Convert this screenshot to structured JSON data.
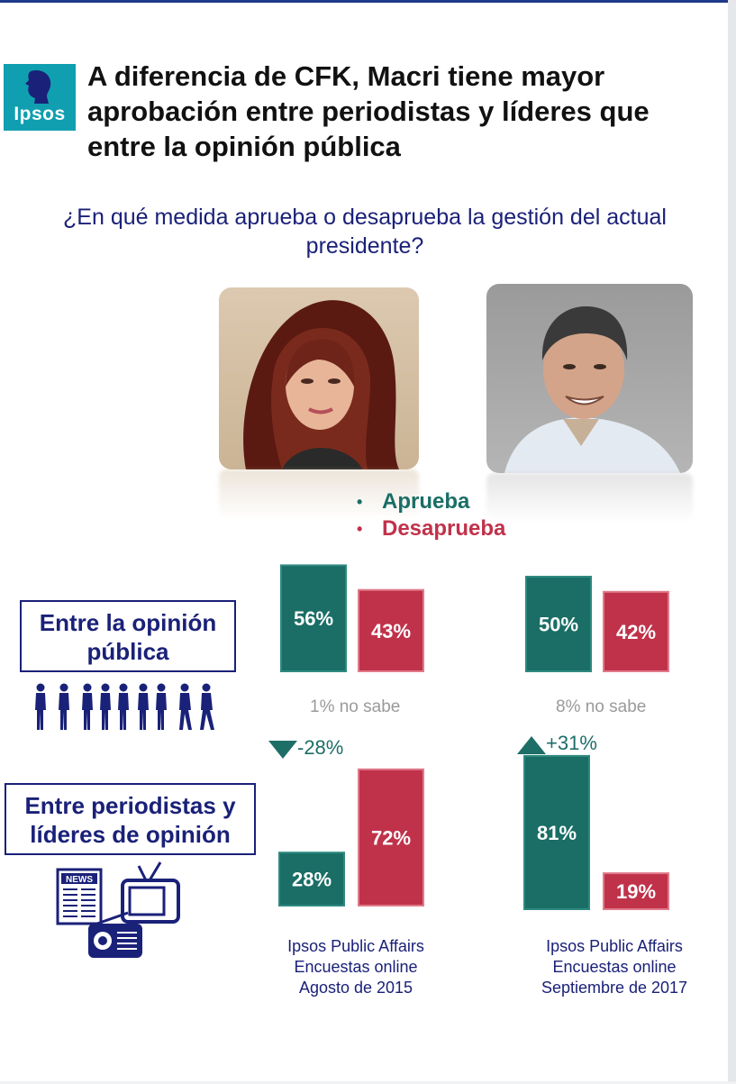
{
  "header": {
    "logo_text": "Ipsos",
    "title": "A diferencia de CFK, Macri tiene mayor aprobación entre periodistas y líderes que entre la opinión pública"
  },
  "question": "¿En qué medida aprueba o desaprueba la gestión del actual presidente?",
  "legend": {
    "items": [
      {
        "label": "Aprueba",
        "color": "#1a6e66"
      },
      {
        "label": "Desaprueba",
        "color": "#c0324a"
      }
    ]
  },
  "rows": {
    "public": {
      "label": "Entre la opinión pública"
    },
    "leaders": {
      "label": "Entre periodistas y líderes de opinión"
    }
  },
  "groups": [
    {
      "public_note": "1% no sabe",
      "change": "-28%",
      "change_direction": "down",
      "source": [
        "Ipsos Public Affairs",
        "Encuestas online",
        "Agosto de 2015"
      ]
    },
    {
      "public_note": "8% no sabe",
      "change": "+31%",
      "change_direction": "up",
      "source": [
        "Ipsos Public Affairs",
        "Encuestas online",
        "Septiembre de 2017"
      ]
    }
  ],
  "icons": {
    "people": "people-silhouettes-icon",
    "media": "news-tv-radio-icon"
  },
  "chart_data": [
    {
      "type": "bar",
      "categories": [
        "Aprueba",
        "Desaprueba"
      ],
      "values": [
        56,
        43
      ],
      "labels": [
        "56%",
        "43%"
      ],
      "colors": [
        "#1a6e66",
        "#c0324a"
      ]
    },
    {
      "type": "bar",
      "categories": [
        "Aprueba",
        "Desaprueba"
      ],
      "values": [
        50,
        42
      ],
      "labels": [
        "50%",
        "42%"
      ],
      "colors": [
        "#1a6e66",
        "#c0324a"
      ]
    },
    {
      "type": "bar",
      "categories": [
        "Aprueba",
        "Desaprueba"
      ],
      "values": [
        28,
        72
      ],
      "labels": [
        "28%",
        "72%"
      ],
      "colors": [
        "#1a6e66",
        "#c0324a"
      ]
    },
    {
      "type": "bar",
      "categories": [
        "Aprueba",
        "Desaprueba"
      ],
      "values": [
        81,
        19
      ],
      "labels": [
        "81%",
        "19%"
      ],
      "colors": [
        "#1a6e66",
        "#c0324a"
      ]
    }
  ]
}
